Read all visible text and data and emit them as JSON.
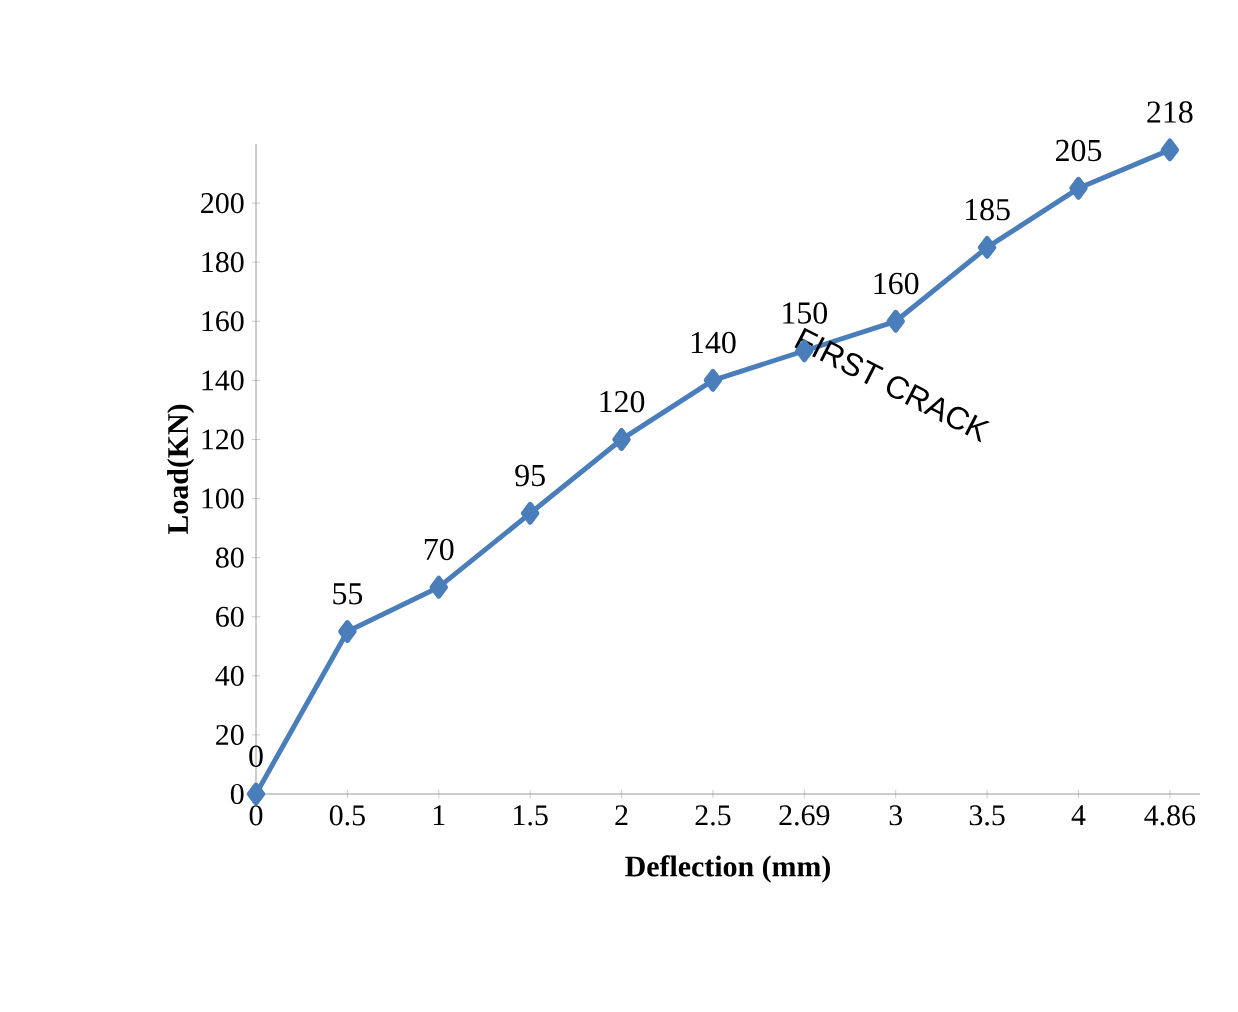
{
  "chart_data": {
    "type": "line",
    "xlabel": "Deflection (mm)",
    "ylabel": "Load(KN)",
    "categories": [
      "0",
      "0.5",
      "1",
      "1.5",
      "2",
      "2.5",
      "2.69",
      "3",
      "3.5",
      "4",
      "4.86"
    ],
    "values": [
      0,
      55,
      70,
      95,
      120,
      140,
      150,
      160,
      185,
      205,
      218
    ],
    "color": "#4a7ebb",
    "marker": "diamond",
    "data_labels": true,
    "ylim": [
      0,
      220
    ],
    "yticks": [
      0,
      20,
      40,
      60,
      80,
      100,
      120,
      140,
      160,
      180,
      200
    ],
    "annotations": [
      {
        "text": "FIRST CRACK",
        "x": "2.69",
        "y": 150
      }
    ]
  }
}
